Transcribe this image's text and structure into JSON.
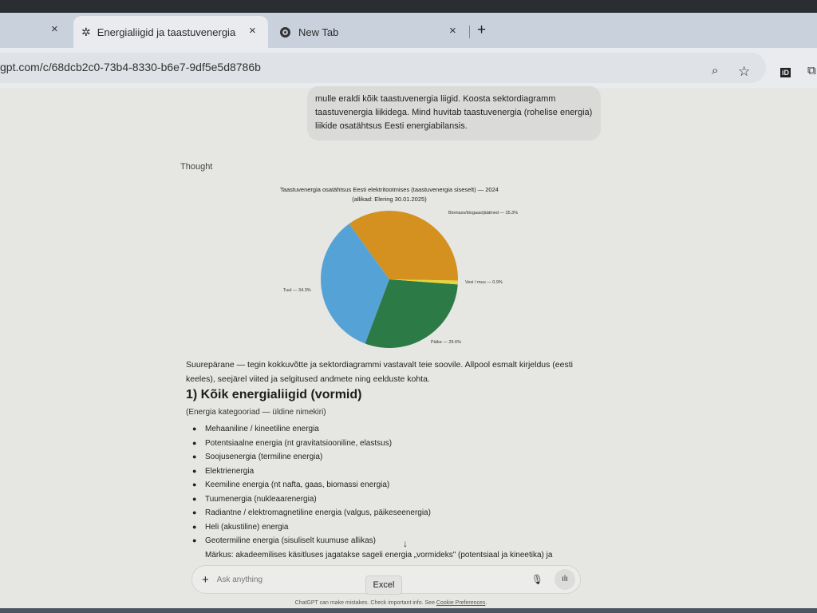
{
  "browser": {
    "tabs": [
      {
        "label": "Energialiigid ja taastuvenergia",
        "active": true,
        "icon": "chatgpt-icon"
      },
      {
        "label": "New Tab",
        "active": false,
        "icon": "chrome-icon"
      }
    ],
    "close_glyph": "×",
    "new_tab_glyph": "+",
    "url": "gpt.com/c/68dcb2c0-73b4-8330-b6e7-9df5e5d8786b",
    "icons": [
      "zoom-icon",
      "star-icon",
      "id-extension-icon",
      "extensions-icon"
    ]
  },
  "chat": {
    "user_message": "mulle eraldi kõik taastuvenergia liigid. Koosta sektordiagramm taastuvenergia liikidega. Mind huvitab taastuvenergia (rohelise energia) liikide osatähtsus Eesti energiabilansis.",
    "thought_label": "Thought",
    "intro": "Suurepärane — tegin kokkuvõtte ja sektordiagrammi vastavalt teie soovile. Allpool esmalt kirjeldus (eesti keeles), seejärel viited ja selgitused andmete ning eelduste kohta.",
    "heading": "1) Kõik energialiigid (vormid)",
    "subheading": "(Energia kategooriad — üldine nimekiri)",
    "items": [
      "Mehaaniline / kineetiline energia",
      "Potentsiaalne energia (nt gravitatsiooniline, elastsus)",
      "Soojusenergia (termiline energia)",
      "Elektrienergia",
      "Keemiline energia (nt nafta, gaas, biomassi energia)",
      "Tuumenergia (nukleaarenergia)",
      "Radiantne / elektromagnetiline energia (valgus, päikeseenergia)",
      "Heli (akustiline) energia",
      "Geotermiline energia (sisuliselt kuumuse allikas)"
    ],
    "note": "Märkus: akadeemilises käsitluses jagatakse sageli energia „vormideks\" (potentsiaal ja kineetika) ja",
    "scroll_down_glyph": "↓"
  },
  "composer": {
    "placeholder": "Ask anything",
    "plus_glyph": "+",
    "tooltip": "Excel",
    "footer": "ChatGPT can make mistakes. Check important info. See",
    "footer_link": "Cookie Preferences",
    "footer_end": "."
  },
  "chart_data": {
    "type": "pie",
    "title": "Taastuvenergia osatähtsus Eesti elektritootmises (taastuvenergia siseselt) — 2024",
    "subtitle": "(allikad: Elering 30.01.2025)",
    "slices": [
      {
        "label": "Biomass/biogaas/jäätmed",
        "value": 35.3,
        "color": "#d4911f"
      },
      {
        "label": "Tuul",
        "value": 34.3,
        "color": "#55a3d6"
      },
      {
        "label": "Päike",
        "value": 29.6,
        "color": "#2c7a46"
      },
      {
        "label": "Vesi / muu",
        "value": 0.9,
        "color": "#e8d43a"
      }
    ],
    "slice_labels": [
      "Biomass/biogaas/jäätmed — 35.3%",
      "Tuul — 34.3%",
      "Päike — 29.6%",
      "Vesi / muu — 0.9%"
    ]
  }
}
